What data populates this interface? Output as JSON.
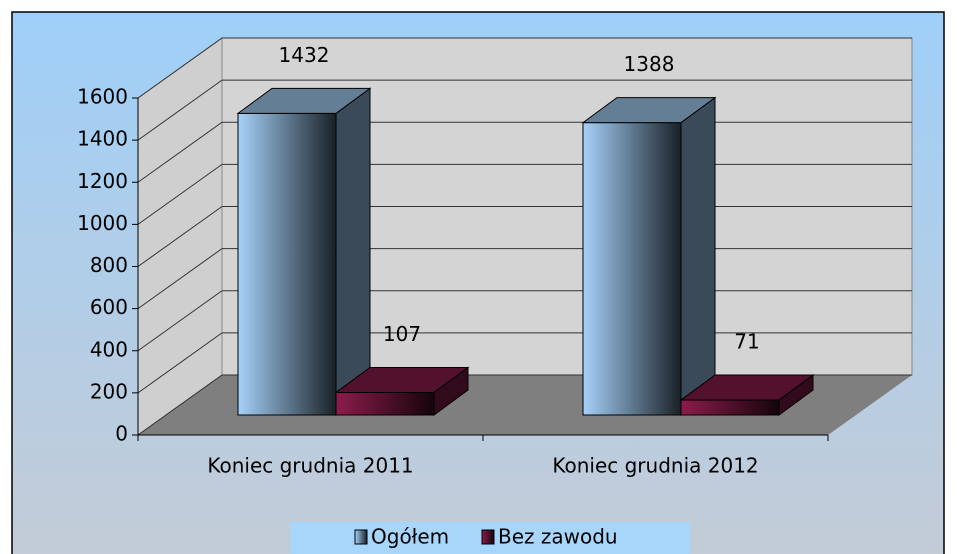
{
  "chart_data": {
    "type": "bar3d",
    "categories": [
      "Koniec grudnia 2011",
      "Koniec grudnia 2012"
    ],
    "series": [
      {
        "name": "Ogółem",
        "color": "#a6d2fa",
        "values": [
          1432,
          1388
        ]
      },
      {
        "name": "Bez zawodu",
        "color": "#8c1c4c",
        "values": [
          107,
          71
        ]
      }
    ],
    "ylim": [
      0,
      1600
    ],
    "yticks": [
      0,
      200,
      400,
      600,
      800,
      1000,
      1200,
      1400,
      1600
    ],
    "grid": true,
    "legend": "bottom"
  }
}
